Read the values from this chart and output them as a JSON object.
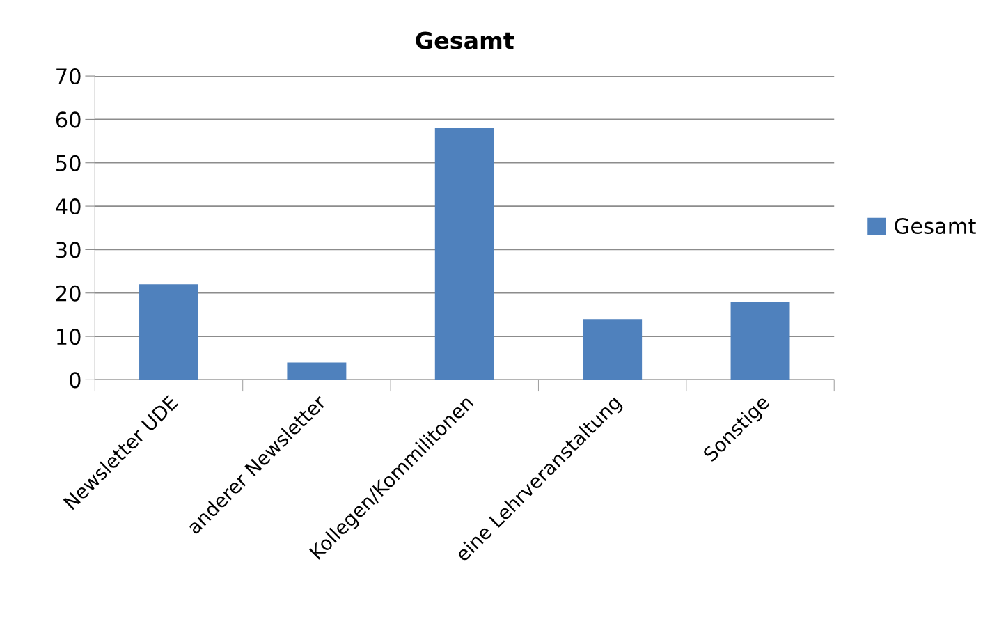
{
  "chart_data": {
    "type": "bar",
    "title": "Gesamt",
    "categories": [
      "Newsletter UDE",
      "anderer Newsletter",
      "Kollegen/Kommilitonen",
      "eine Lehrveranstaltung",
      "Sonstige"
    ],
    "series": [
      {
        "name": "Gesamt",
        "color": "#4f81bd",
        "values": [
          22,
          4,
          58,
          14,
          18
        ]
      }
    ],
    "ylim": [
      0,
      70
    ],
    "yticks": [
      0,
      10,
      20,
      30,
      40,
      50,
      60,
      70
    ],
    "grid": "y",
    "legend": "right"
  }
}
